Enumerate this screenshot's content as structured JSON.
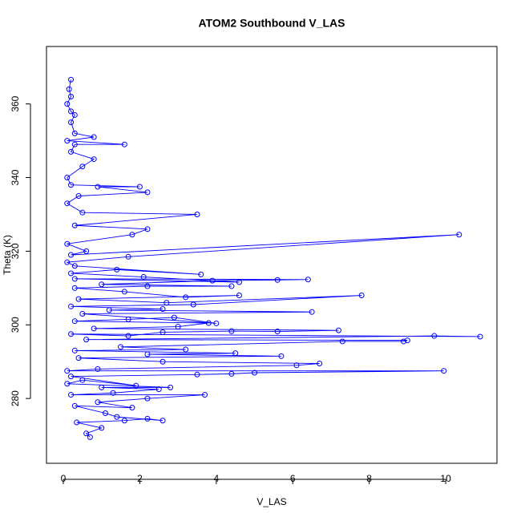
{
  "chart_data": {
    "type": "line",
    "title": "ATOM2 Southbound V_LAS",
    "xlabel": "V_LAS",
    "ylabel": "Theta (K)",
    "color": "#0000ff",
    "marker": "circle",
    "xlim": [
      -0.44,
      11.34
    ],
    "ylim": [
      262.4,
      375.6
    ],
    "xticks": [
      0,
      2,
      4,
      6,
      8,
      10
    ],
    "yticks": [
      280,
      300,
      320,
      340,
      360
    ],
    "x": [
      0.7,
      0.6,
      1.0,
      0.35,
      1.6,
      2.2,
      2.6,
      1.4,
      1.1,
      0.3,
      1.8,
      0.9,
      2.2,
      3.7,
      0.2,
      1.3,
      2.5,
      1.0,
      2.8,
      0.1,
      0.5,
      1.9,
      0.2,
      3.5,
      4.4,
      5.0,
      9.95,
      0.1,
      0.9,
      6.1,
      6.7,
      2.6,
      0.4,
      5.7,
      2.2,
      4.5,
      0.3,
      3.2,
      1.5,
      7.3,
      8.9,
      9.0,
      0.6,
      9.7,
      10.9,
      0.2,
      1.7,
      2.6,
      4.4,
      5.6,
      7.2,
      0.8,
      3.0,
      3.8,
      0.3,
      1.7,
      2.9,
      4.0,
      0.5,
      6.5,
      1.2,
      2.6,
      0.2,
      3.4,
      7.8,
      2.7,
      0.4,
      4.6,
      3.2,
      1.6,
      0.3,
      2.2,
      4.4,
      1.0,
      3.9,
      5.6,
      6.4,
      0.3,
      4.6,
      2.1,
      0.2,
      1.4,
      3.6,
      0.3,
      0.1,
      1.7,
      10.35,
      0.2,
      0.6,
      0.1,
      1.8,
      2.2,
      0.3,
      3.5,
      0.5,
      0.1,
      0.4,
      2.2,
      0.9,
      2.0,
      0.2,
      0.1,
      0.5,
      0.8,
      0.2,
      0.3,
      1.6,
      0.1,
      0.8,
      0.3,
      0.2,
      0.3,
      0.2,
      0.1,
      0.2,
      0.15,
      0.2
    ],
    "values": [
      269.5,
      270.5,
      272,
      273.5,
      274,
      274.5,
      274,
      275,
      276,
      278,
      277.5,
      279,
      280,
      281,
      281,
      281.5,
      282.5,
      283,
      283,
      284,
      285,
      283.5,
      286,
      286.5,
      286.7,
      287,
      287.5,
      287.5,
      288,
      289,
      289.5,
      290,
      291,
      291.5,
      292,
      292.3,
      293,
      293.3,
      294,
      295.5,
      295.5,
      295.8,
      296,
      297,
      296.8,
      297.5,
      297,
      298,
      298.3,
      298.2,
      298.5,
      299,
      299.5,
      300.5,
      301,
      301.5,
      302,
      300.4,
      303,
      303.5,
      304,
      304.3,
      305,
      305.5,
      308,
      306,
      307,
      308,
      307.5,
      309,
      310,
      310.5,
      310.5,
      311,
      312,
      312.2,
      312.3,
      312.5,
      311.6,
      313,
      314,
      315,
      313.7,
      316,
      317,
      318.5,
      324.5,
      319,
      320,
      322,
      324.5,
      326,
      327,
      330,
      330.5,
      333,
      335,
      336,
      337.5,
      337.5,
      338,
      340,
      343,
      345,
      347,
      349,
      349,
      350,
      351,
      352,
      355,
      357,
      358,
      360,
      362,
      364,
      366.6
    ]
  }
}
